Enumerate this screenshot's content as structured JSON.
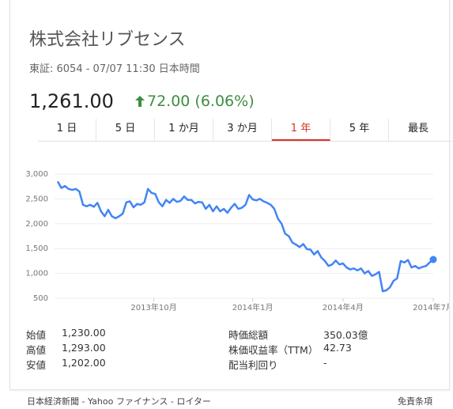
{
  "header": {
    "company": "株式会社リブセンス",
    "exchange_info": "東証: 6054 - 07/07 11:30 日本時間",
    "price": "1,261.00",
    "change": "72.00 (6.06%)",
    "change_color": "#3c8e3f"
  },
  "tabs": [
    {
      "label": "1 日"
    },
    {
      "label": "5 日"
    },
    {
      "label": "1 か月"
    },
    {
      "label": "3 か月"
    },
    {
      "label": "1 年",
      "active": true
    },
    {
      "label": "5 年"
    },
    {
      "label": "最長"
    }
  ],
  "chart_data": {
    "type": "line",
    "y_ticks": [
      "3,000",
      "2,500",
      "2,000",
      "1,500",
      "1,000",
      "500"
    ],
    "x_ticks": [
      "2013年10月",
      "2014年1月",
      "2014年4月",
      "2014年7月"
    ],
    "ylim": [
      500,
      3000
    ],
    "x_range": [
      0,
      52
    ],
    "line_color": "#4285f4",
    "series": [
      {
        "values": [
          [
            0,
            2850
          ],
          [
            0.5,
            2720
          ],
          [
            1,
            2760
          ],
          [
            1.5,
            2700
          ],
          [
            2,
            2680
          ],
          [
            2.5,
            2700
          ],
          [
            3,
            2650
          ],
          [
            3.5,
            2380
          ],
          [
            4,
            2350
          ],
          [
            4.5,
            2380
          ],
          [
            5,
            2340
          ],
          [
            5.5,
            2420
          ],
          [
            6,
            2250
          ],
          [
            6.5,
            2150
          ],
          [
            7,
            2280
          ],
          [
            7.5,
            2150
          ],
          [
            8,
            2110
          ],
          [
            8.5,
            2150
          ],
          [
            9,
            2200
          ],
          [
            9.5,
            2430
          ],
          [
            10,
            2450
          ],
          [
            10.5,
            2330
          ],
          [
            11,
            2400
          ],
          [
            11.5,
            2380
          ],
          [
            12,
            2430
          ],
          [
            12.5,
            2700
          ],
          [
            13,
            2620
          ],
          [
            13.5,
            2600
          ],
          [
            14,
            2430
          ],
          [
            14.5,
            2350
          ],
          [
            15,
            2480
          ],
          [
            15.5,
            2420
          ],
          [
            16,
            2500
          ],
          [
            16.5,
            2440
          ],
          [
            17,
            2460
          ],
          [
            17.5,
            2550
          ],
          [
            18,
            2480
          ],
          [
            18.5,
            2480
          ],
          [
            19,
            2410
          ],
          [
            19.5,
            2440
          ],
          [
            20,
            2430
          ],
          [
            20.5,
            2300
          ],
          [
            21,
            2380
          ],
          [
            21.5,
            2250
          ],
          [
            22,
            2350
          ],
          [
            22.5,
            2250
          ],
          [
            23,
            2300
          ],
          [
            23.5,
            2220
          ],
          [
            24,
            2320
          ],
          [
            24.5,
            2400
          ],
          [
            25,
            2300
          ],
          [
            25.5,
            2320
          ],
          [
            26,
            2380
          ],
          [
            26.5,
            2580
          ],
          [
            27,
            2490
          ],
          [
            27.5,
            2470
          ],
          [
            28,
            2500
          ],
          [
            28.5,
            2450
          ],
          [
            29,
            2420
          ],
          [
            29.5,
            2380
          ],
          [
            30,
            2300
          ],
          [
            30.5,
            2100
          ],
          [
            31,
            2000
          ],
          [
            31.5,
            1800
          ],
          [
            32,
            1750
          ],
          [
            32.5,
            1620
          ],
          [
            33,
            1580
          ],
          [
            33.5,
            1530
          ],
          [
            34,
            1590
          ],
          [
            34.5,
            1490
          ],
          [
            35,
            1480
          ],
          [
            35.5,
            1380
          ],
          [
            36,
            1450
          ],
          [
            36.5,
            1320
          ],
          [
            37,
            1250
          ],
          [
            37.5,
            1150
          ],
          [
            38,
            1180
          ],
          [
            38.5,
            1260
          ],
          [
            39,
            1180
          ],
          [
            39.5,
            1200
          ],
          [
            40,
            1120
          ],
          [
            40.5,
            1080
          ],
          [
            41,
            1100
          ],
          [
            41.5,
            1060
          ],
          [
            42,
            1100
          ],
          [
            42.5,
            1000
          ],
          [
            43,
            1050
          ],
          [
            43.5,
            950
          ],
          [
            44,
            980
          ],
          [
            44.5,
            1030
          ],
          [
            45,
            640
          ],
          [
            45.5,
            660
          ],
          [
            46,
            720
          ],
          [
            46.5,
            850
          ],
          [
            47,
            900
          ],
          [
            47.5,
            1250
          ],
          [
            48,
            1220
          ],
          [
            48.5,
            1270
          ],
          [
            49,
            1120
          ],
          [
            49.5,
            1150
          ],
          [
            50,
            1100
          ],
          [
            50.5,
            1130
          ],
          [
            51,
            1150
          ],
          [
            51.5,
            1220
          ],
          [
            52,
            1280
          ]
        ]
      }
    ]
  },
  "stats_left": [
    {
      "label": "始値",
      "value": "1,230.00"
    },
    {
      "label": "高値",
      "value": "1,293.00"
    },
    {
      "label": "安値",
      "value": "1,202.00"
    }
  ],
  "stats_right": [
    {
      "label": "時価総額",
      "value": "350.03億"
    },
    {
      "label": "株価収益率（TTM）",
      "value": "42.73"
    },
    {
      "label": "配当利回り",
      "value": "-"
    }
  ],
  "footer": {
    "source": "日本経済新聞 - Yahoo ファイナンス - ロイター",
    "disclaimer": "免責条項"
  }
}
